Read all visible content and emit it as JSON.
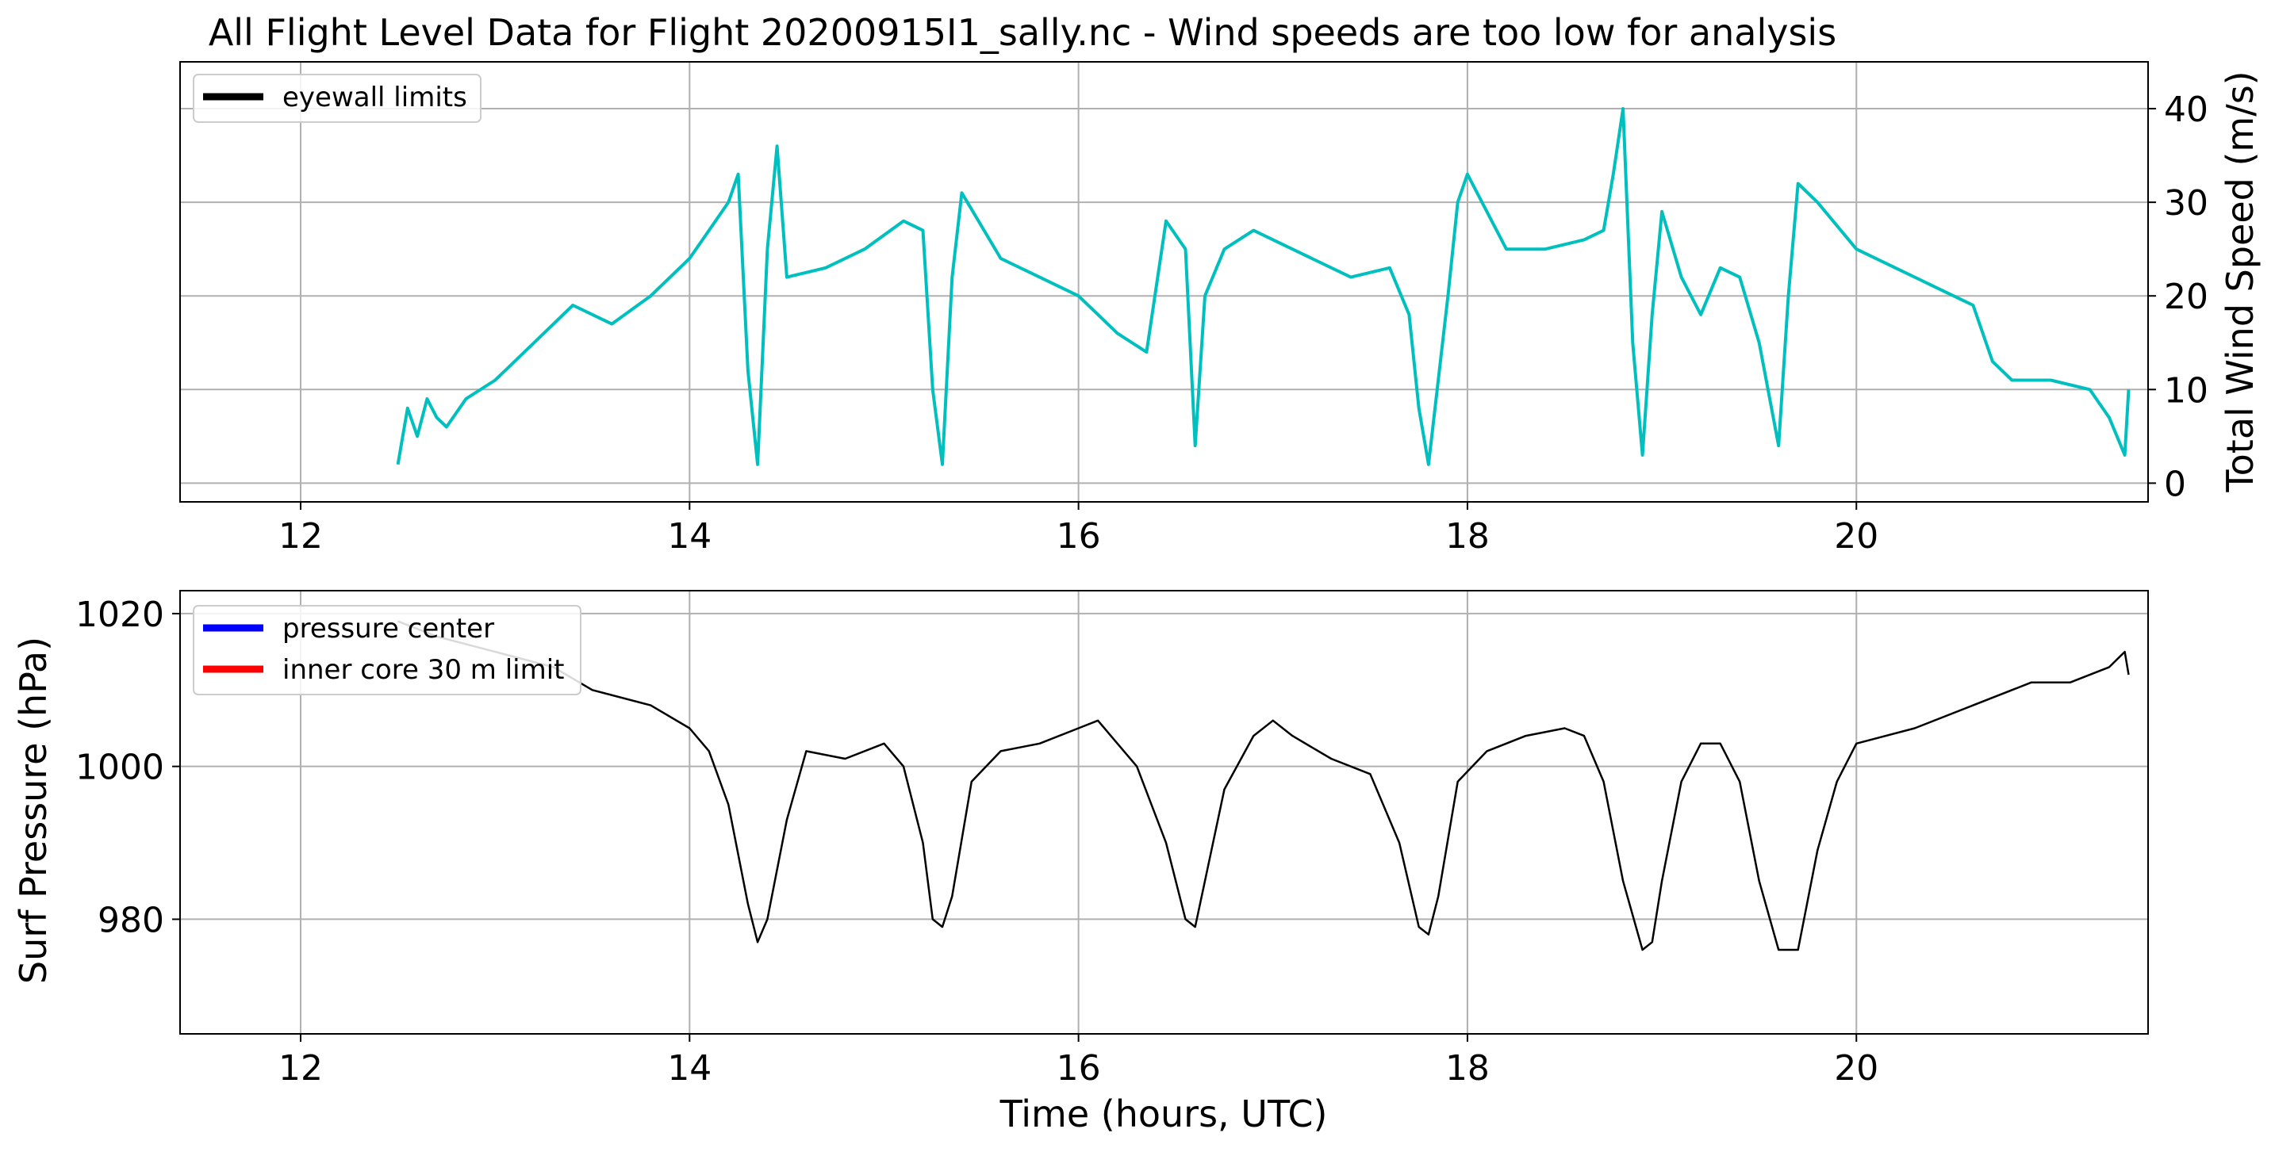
{
  "chart_data": [
    {
      "type": "line",
      "title": "All Flight Level Data for Flight 20200915I1_sally.nc - Wind speeds are too low for analysis",
      "xlabel": "",
      "ylabel": "Total Wind Speed (m/s)",
      "ylabel_color": "#00bfbf",
      "xlim": [
        11.38,
        21.5
      ],
      "ylim": [
        -2,
        45
      ],
      "xticks": [
        "12",
        "14",
        "16",
        "18",
        "20"
      ],
      "yticks": [
        "0",
        "10",
        "20",
        "30",
        "40"
      ],
      "yaxis_side": "right",
      "grid": true,
      "legend": {
        "position": "upper-left",
        "entries": [
          {
            "label": "eyewall limits",
            "color": "#000000"
          }
        ]
      },
      "series": [
        {
          "color": "#00bfbf",
          "x": [
            12.5,
            12.55,
            12.6,
            12.65,
            12.7,
            12.75,
            12.85,
            13.0,
            13.2,
            13.4,
            13.6,
            13.8,
            14.0,
            14.1,
            14.2,
            14.25,
            14.3,
            14.35,
            14.4,
            14.45,
            14.5,
            14.7,
            14.9,
            15.1,
            15.2,
            15.25,
            15.3,
            15.35,
            15.4,
            15.6,
            15.8,
            16.0,
            16.2,
            16.35,
            16.45,
            16.55,
            16.6,
            16.65,
            16.75,
            16.9,
            17.0,
            17.2,
            17.4,
            17.6,
            17.7,
            17.75,
            17.8,
            17.9,
            17.95,
            18.0,
            18.2,
            18.4,
            18.6,
            18.7,
            18.75,
            18.8,
            18.85,
            18.9,
            18.95,
            19.0,
            19.1,
            19.2,
            19.3,
            19.4,
            19.5,
            19.6,
            19.65,
            19.7,
            19.8,
            20.0,
            20.2,
            20.4,
            20.6,
            20.7,
            20.8,
            21.0,
            21.2,
            21.3,
            21.38,
            21.4
          ],
          "values": [
            2,
            8,
            5,
            9,
            7,
            6,
            9,
            11,
            15,
            19,
            17,
            20,
            24,
            27,
            30,
            33,
            12,
            2,
            25,
            36,
            22,
            23,
            25,
            28,
            27,
            10,
            2,
            22,
            31,
            24,
            22,
            20,
            16,
            14,
            28,
            25,
            4,
            20,
            25,
            27,
            26,
            24,
            22,
            23,
            18,
            8,
            2,
            20,
            30,
            33,
            25,
            25,
            26,
            27,
            33,
            40,
            15,
            3,
            18,
            29,
            22,
            18,
            23,
            22,
            15,
            4,
            20,
            32,
            30,
            25,
            23,
            21,
            19,
            13,
            11,
            11,
            10,
            7,
            3,
            10
          ]
        }
      ]
    },
    {
      "type": "line",
      "title": "",
      "xlabel": "Time (hours, UTC)",
      "ylabel": "Surf Pressure (hPa)",
      "xlim": [
        11.38,
        21.5
      ],
      "ylim": [
        965,
        1023
      ],
      "xticks": [
        "12",
        "14",
        "16",
        "18",
        "20"
      ],
      "yticks": [
        "980",
        "1000",
        "1020"
      ],
      "grid": true,
      "legend": {
        "position": "upper-left",
        "entries": [
          {
            "label": "pressure center",
            "color": "#0000ff"
          },
          {
            "label": "inner core 30 m limit",
            "color": "#ff0000"
          }
        ]
      },
      "series": [
        {
          "color": "#000000",
          "x": [
            12.5,
            12.7,
            13.0,
            13.3,
            13.5,
            13.8,
            14.0,
            14.1,
            14.2,
            14.3,
            14.35,
            14.4,
            14.5,
            14.6,
            14.8,
            15.0,
            15.1,
            15.2,
            15.25,
            15.3,
            15.35,
            15.45,
            15.6,
            15.8,
            16.0,
            16.1,
            16.3,
            16.45,
            16.55,
            16.6,
            16.65,
            16.75,
            16.9,
            17.0,
            17.1,
            17.3,
            17.5,
            17.65,
            17.75,
            17.8,
            17.85,
            17.95,
            18.1,
            18.3,
            18.5,
            18.6,
            18.7,
            18.8,
            18.9,
            18.95,
            19.0,
            19.1,
            19.2,
            19.3,
            19.4,
            19.5,
            19.6,
            19.7,
            19.8,
            19.9,
            20.0,
            20.3,
            20.6,
            20.9,
            21.1,
            21.3,
            21.38,
            21.4
          ],
          "values": [
            1019,
            1017,
            1015,
            1013,
            1010,
            1008,
            1005,
            1002,
            995,
            982,
            977,
            980,
            993,
            1002,
            1001,
            1003,
            1000,
            990,
            980,
            979,
            983,
            998,
            1002,
            1003,
            1005,
            1006,
            1000,
            990,
            980,
            979,
            985,
            997,
            1004,
            1006,
            1004,
            1001,
            999,
            990,
            979,
            978,
            983,
            998,
            1002,
            1004,
            1005,
            1004,
            998,
            985,
            976,
            977,
            985,
            998,
            1003,
            1003,
            998,
            985,
            976,
            976,
            989,
            998,
            1003,
            1005,
            1008,
            1011,
            1011,
            1013,
            1015,
            1012
          ]
        }
      ]
    }
  ]
}
